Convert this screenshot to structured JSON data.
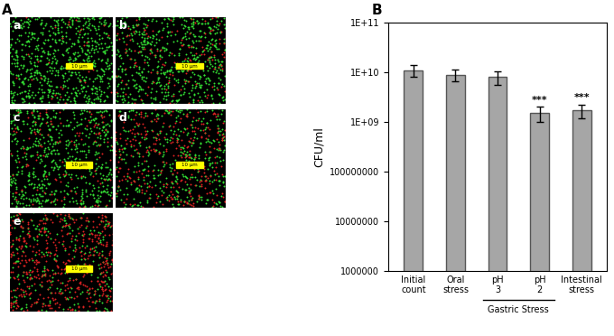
{
  "panel_labels": [
    "A",
    "B"
  ],
  "images": {
    "labels": [
      "a",
      "b",
      "c",
      "d",
      "e"
    ],
    "scale_bar": "10 μm"
  },
  "chart_data": {
    "type": "bar",
    "log": "y",
    "categories": [
      "Initial count",
      "Oral stress",
      "pH 3",
      "pH 2",
      "Intestinal stress"
    ],
    "values": [
      11000000000,
      9000000000,
      8000000000,
      1500000000,
      1700000000
    ],
    "errors": [
      3000000000,
      2500000000,
      2500000000,
      500000000,
      500000000
    ],
    "color": "#a6a6a6",
    "y_label": "CFU/ml",
    "ylim": [
      1000000,
      100000000000
    ],
    "yticks": [
      1000000,
      10000000,
      100000000,
      {
        "value": 1000000000,
        "label": "1E+09"
      },
      {
        "value": 10000000000,
        "label": "1E+10"
      },
      {
        "value": 100000000000,
        "label": "1E+11"
      }
    ],
    "groups": [
      {
        "label": "Gastric Stress",
        "categories": [
          "pH 3",
          "pH 2"
        ]
      }
    ],
    "annotations": [
      {
        "category": "pH 2",
        "text": "***"
      },
      {
        "category": "Intestinal stress",
        "text": "***"
      }
    ]
  }
}
